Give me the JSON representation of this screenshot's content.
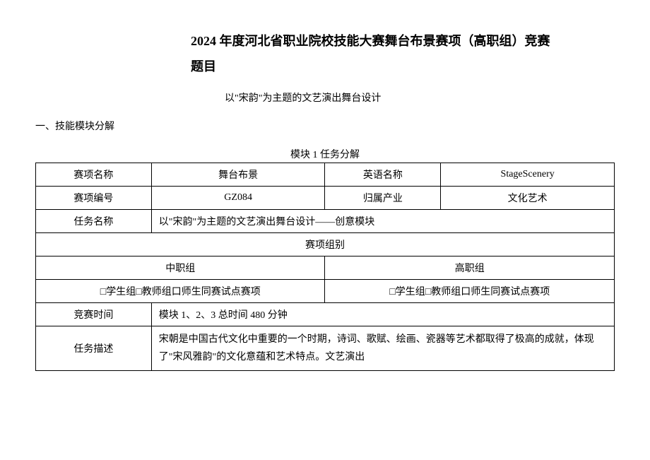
{
  "title": {
    "line1": "2024 年度河北省职业院校技能大赛舞台布景赛项（高职组）竞赛",
    "line2": "题目"
  },
  "subtitle": "以\"宋韵\"为主题的文艺演出舞台设计",
  "section_heading": "一、技能模块分解",
  "table_caption": "模块 1 任务分解",
  "table": {
    "row1": {
      "label1": "赛项名称",
      "value1": "舞台布景",
      "label2": "英语名称",
      "value2": "StageScenery"
    },
    "row2": {
      "label1": "赛项编号",
      "value1": "GZ084",
      "label2": "归属产业",
      "value2": "文化艺术"
    },
    "row3": {
      "label": "任务名称",
      "value": "以\"宋韵\"为主题的文艺演出舞台设计——创意模块"
    },
    "row4": {
      "header": "赛项组别"
    },
    "row5": {
      "left": "中职组",
      "right": "高职组"
    },
    "row6": {
      "left": "□学生组□教师组口师生同赛试点赛项",
      "right": "□学生组□教师组口师生同赛试点赛项"
    },
    "row7": {
      "label": "竞赛时间",
      "value": "模块 1、2、3 总时间 480 分钟"
    },
    "row8": {
      "label": "任务描述",
      "value": "宋朝是中国古代文化中重要的一个时期，诗词、歌赋、绘画、瓷器等艺术都取得了极高的成就，体现了\"宋风雅韵\"的文化意蕴和艺术特点。文艺演出"
    }
  },
  "colors": {
    "background": "#ffffff",
    "text": "#000000",
    "border": "#000000"
  }
}
